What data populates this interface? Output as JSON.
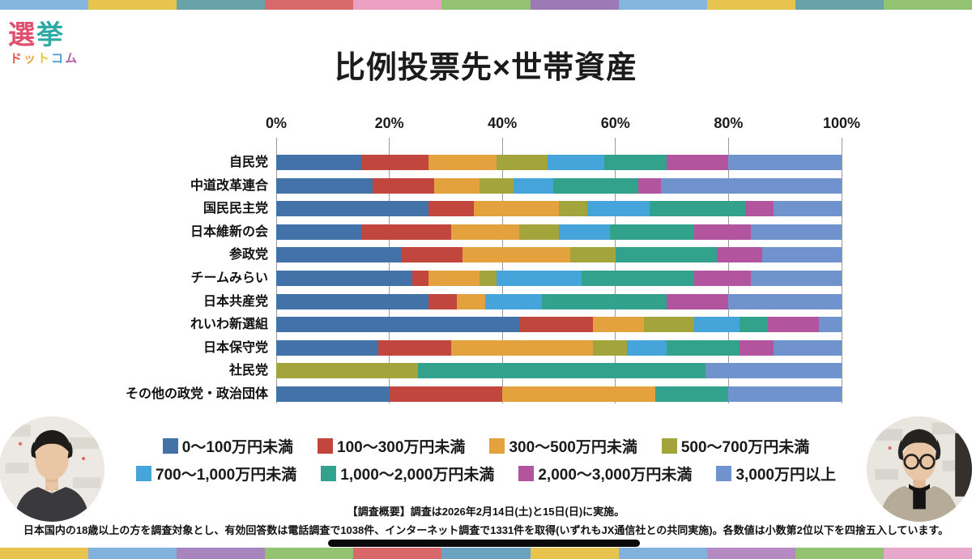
{
  "logo": {
    "main": [
      {
        "ch": "選",
        "c": "#e0506e"
      },
      {
        "ch": "挙",
        "c": "#2ea9a4"
      }
    ],
    "sub": [
      {
        "ch": "ド",
        "c": "#e4584c"
      },
      {
        "ch": "ッ",
        "c": "#efa33c"
      },
      {
        "ch": "ト",
        "c": "#e9c33b"
      },
      {
        "ch": "コ",
        "c": "#4a9fd8"
      },
      {
        "ch": "ム",
        "c": "#b05fa8"
      }
    ]
  },
  "chart_data": {
    "type": "bar",
    "stacked": true,
    "orientation": "horizontal",
    "title": "比例投票先×世帯資産",
    "xlim": [
      0,
      100
    ],
    "x_ticks": [
      "0%",
      "20%",
      "40%",
      "60%",
      "80%",
      "100%"
    ],
    "grid": true,
    "legend_position": "bottom",
    "categories": [
      "自民党",
      "中道改革連合",
      "国民民主党",
      "日本維新の会",
      "参政党",
      "チームみらい",
      "日本共産党",
      "れいわ新選組",
      "日本保守党",
      "社民党",
      "その他の政党・政治団体"
    ],
    "series": [
      {
        "name": "0〜100万円未満",
        "color": "#4372a8",
        "values": [
          15,
          17,
          27,
          15,
          22,
          24,
          27,
          43,
          18,
          0,
          20
        ]
      },
      {
        "name": "100〜300万円未満",
        "color": "#c1463e",
        "values": [
          12,
          11,
          8,
          16,
          11,
          3,
          5,
          13,
          13,
          0,
          20
        ]
      },
      {
        "name": "300〜500万円未満",
        "color": "#e3a23d",
        "values": [
          12,
          8,
          15,
          12,
          19,
          9,
          5,
          9,
          25,
          0,
          27
        ]
      },
      {
        "name": "500〜700万円未満",
        "color": "#a4a43c",
        "values": [
          9,
          6,
          5,
          7,
          8,
          3,
          0,
          9,
          6,
          25,
          0
        ]
      },
      {
        "name": "700〜1,000万円未満",
        "color": "#45a5da",
        "values": [
          10,
          7,
          11,
          9,
          0,
          15,
          10,
          8,
          7,
          0,
          0
        ]
      },
      {
        "name": "1,000〜2,000万円未満",
        "color": "#33a28d",
        "values": [
          11,
          15,
          17,
          15,
          18,
          20,
          22,
          5,
          13,
          51,
          13
        ]
      },
      {
        "name": "2,000〜3,000万円未満",
        "color": "#b2549e",
        "values": [
          11,
          4,
          5,
          10,
          8,
          10,
          11,
          9,
          6,
          0,
          0
        ]
      },
      {
        "name": "3,000万円以上",
        "color": "#7093ce",
        "values": [
          20,
          32,
          12,
          16,
          14,
          16,
          20,
          4,
          12,
          24,
          20
        ]
      }
    ]
  },
  "footer": {
    "line1": "【調査概要】調査は2026年2月14日(土)と15日(日)に実施。",
    "line2": "日本国内の18歳以上の方を調査対象とし、有効回答数は電話調査で1038件、インターネット調査で1331件を取得(いずれもJX通信社との共同実施)。各数値は小数第2位以下を四捨五入しています。"
  },
  "decor": {
    "top_border_colors": [
      "#85b4dc",
      "#e6c44e",
      "#68a3a9",
      "#d9686a",
      "#ea9fc3",
      "#93c271",
      "#9d7ab5",
      "#85b4dc",
      "#e6c44e",
      "#68a3a9",
      "#93c271"
    ],
    "bottom_border_colors": [
      "#e8c44e",
      "#82b1dc",
      "#a884bc",
      "#93c271",
      "#d9686a",
      "#6ba4c1",
      "#e8c44e",
      "#82b1dc",
      "#b58ac2",
      "#93c271",
      "#e8a8cc"
    ]
  }
}
